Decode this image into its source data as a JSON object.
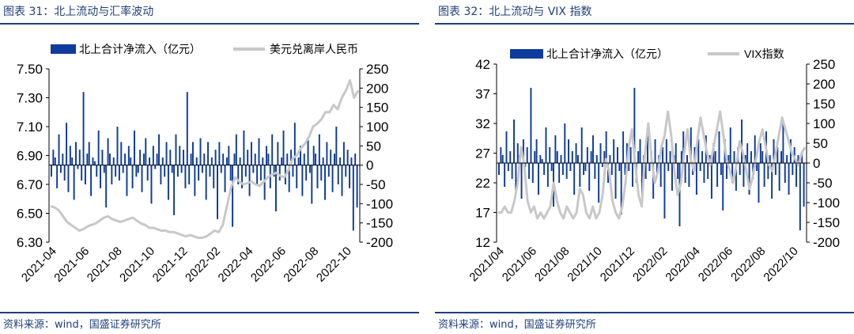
{
  "colors": {
    "accent": "#1f3f7a",
    "flow_bar": "#0f3c9c",
    "index_line": "#c8c8c8"
  },
  "left": {
    "title": "图表 31：北上流动与汇率波动",
    "source": "资料来源：wind，国盛证券研究所",
    "chart_data": {
      "type": "bar",
      "title": "",
      "xlabel": "",
      "x_tick_labels": [
        "2021-04",
        "2021-06",
        "2021-08",
        "2021-10",
        "2021-12",
        "2022-02",
        "2022-04",
        "2022-06",
        "2022-08",
        "2022-10"
      ],
      "left_axis": {
        "ticks": [
          "7.50",
          "7.30",
          "7.10",
          "6.90",
          "6.70",
          "6.50",
          "6.30"
        ],
        "ylim": [
          6.3,
          7.5
        ],
        "series": "美元兑离岸人民币"
      },
      "right_axis": {
        "ticks": [
          "250",
          "200",
          "150",
          "100",
          "50",
          "0",
          "-50",
          "-100",
          "-150",
          "-200"
        ],
        "ylim": [
          -200,
          250
        ],
        "series": "北上合计净流入（亿元）"
      },
      "legend": {
        "placement": "top",
        "items": [
          "北上合计净流入（亿元）",
          "美元兑离岸人民币"
        ]
      },
      "series": [
        {
          "name": "北上合计净流入（亿元）",
          "type": "bar",
          "axis": "right",
          "x_range": [
            "2021-04",
            "2022-10"
          ],
          "values": [
            -30,
            40,
            20,
            -60,
            80,
            -20,
            30,
            -40,
            110,
            -70,
            50,
            20,
            -90,
            60,
            -10,
            40,
            -40,
            190,
            -50,
            30,
            60,
            -80,
            20,
            10,
            -30,
            90,
            -60,
            40,
            -20,
            -110,
            70,
            30,
            -50,
            20,
            -30,
            100,
            -40,
            60,
            -20,
            30,
            -80,
            50,
            20,
            -60,
            90,
            -30,
            -20,
            40,
            -70,
            30,
            70,
            -40,
            20,
            -100,
            50,
            -10,
            30,
            80,
            -50,
            20,
            -30,
            60,
            -90,
            40,
            -20,
            -130,
            80,
            -30,
            50,
            -20,
            40,
            -60,
            190,
            -50,
            30,
            60,
            -80,
            20,
            -40,
            70,
            -20,
            30,
            -90,
            60,
            -30,
            20,
            -60,
            40,
            -140,
            60,
            -20,
            30,
            -70,
            20,
            50,
            -40,
            -160,
            30,
            80,
            -50,
            20,
            -60,
            90,
            -30,
            40,
            -80,
            60,
            -20,
            30,
            -50,
            70,
            -40,
            20,
            -90,
            50,
            30,
            -60,
            80,
            -30,
            -120,
            60,
            -40,
            20,
            90,
            -50,
            30,
            -70,
            40,
            -30,
            110,
            -60,
            20,
            50,
            -80,
            30,
            -40,
            70,
            -20,
            -100,
            50,
            30,
            -60,
            80,
            -40,
            20,
            -90,
            60,
            -30,
            40,
            -70,
            30,
            100,
            -50,
            20,
            -80,
            60,
            -30,
            40,
            -60,
            20,
            -170,
            30,
            -110
          ]
        },
        {
          "name": "美元兑离岸人民币",
          "type": "line",
          "axis": "left",
          "x_range": [
            "2021-04",
            "2022-10"
          ],
          "values": [
            6.55,
            6.54,
            6.52,
            6.48,
            6.44,
            6.42,
            6.4,
            6.38,
            6.39,
            6.41,
            6.42,
            6.43,
            6.45,
            6.47,
            6.48,
            6.46,
            6.45,
            6.44,
            6.45,
            6.46,
            6.47,
            6.45,
            6.43,
            6.42,
            6.4,
            6.4,
            6.39,
            6.38,
            6.38,
            6.37,
            6.37,
            6.36,
            6.35,
            6.34,
            6.35,
            6.34,
            6.33,
            6.33,
            6.34,
            6.36,
            6.38,
            6.37,
            6.42,
            6.55,
            6.68,
            6.75,
            6.72,
            6.7,
            6.71,
            6.72,
            6.7,
            6.69,
            6.72,
            6.75,
            6.77,
            6.78,
            6.76,
            6.75,
            6.8,
            6.88,
            6.9,
            6.95,
            6.98,
            7.03,
            7.1,
            7.12,
            7.15,
            7.2,
            7.2,
            7.25,
            7.22,
            7.3,
            7.35,
            7.42,
            7.3,
            7.35
          ]
        }
      ]
    }
  },
  "right": {
    "title": "图表 32：北上流动与 VIX 指数",
    "source": "资料来源：wind，国盛证券研究所",
    "chart_data": {
      "type": "bar",
      "title": "",
      "xlabel": "",
      "x_tick_labels": [
        "2021/04",
        "2021/06",
        "2021/08",
        "2021/10",
        "2021/12",
        "2022/02",
        "2022/04",
        "2022/06",
        "2022/08",
        "2022/10"
      ],
      "left_axis": {
        "ticks": [
          "42",
          "37",
          "32",
          "27",
          "22",
          "17",
          "12"
        ],
        "ylim": [
          12,
          42
        ],
        "series": "VIX指数"
      },
      "right_axis": {
        "ticks": [
          "250",
          "200",
          "150",
          "100",
          "50",
          "0",
          "-50",
          "-100",
          "-150",
          "-200"
        ],
        "ylim": [
          -200,
          250
        ],
        "series": "北上合计净流入（亿元）"
      },
      "legend": {
        "placement": "top",
        "items": [
          "北上合计净流入（亿元）",
          "VIX指数"
        ]
      },
      "series": [
        {
          "name": "北上合计净流入（亿元）",
          "type": "bar",
          "axis": "right",
          "x_range": [
            "2021/04",
            "2022/10"
          ],
          "values": [
            -30,
            40,
            20,
            -60,
            80,
            -20,
            30,
            -40,
            110,
            -70,
            50,
            20,
            -90,
            60,
            -10,
            40,
            -40,
            190,
            -50,
            30,
            60,
            -80,
            20,
            10,
            -30,
            90,
            -60,
            40,
            -20,
            -110,
            70,
            30,
            -50,
            20,
            -30,
            100,
            -40,
            60,
            -20,
            30,
            -80,
            50,
            20,
            -60,
            90,
            -30,
            -20,
            40,
            -70,
            30,
            70,
            -40,
            20,
            -100,
            50,
            -10,
            30,
            80,
            -50,
            20,
            -30,
            60,
            -90,
            40,
            -20,
            -130,
            80,
            -30,
            50,
            -20,
            40,
            -60,
            190,
            -50,
            30,
            60,
            -80,
            20,
            -40,
            70,
            -20,
            30,
            -90,
            60,
            -30,
            20,
            -60,
            40,
            -140,
            60,
            -20,
            30,
            -70,
            20,
            50,
            -40,
            -160,
            30,
            80,
            -50,
            20,
            -60,
            90,
            -30,
            40,
            -80,
            60,
            -20,
            30,
            -50,
            70,
            -40,
            20,
            -90,
            50,
            30,
            -60,
            80,
            -30,
            -120,
            60,
            -40,
            20,
            90,
            -50,
            30,
            -70,
            40,
            -30,
            110,
            -60,
            20,
            50,
            -80,
            30,
            -40,
            70,
            -20,
            -100,
            50,
            30,
            -60,
            80,
            -40,
            20,
            -90,
            60,
            -30,
            40,
            -70,
            30,
            100,
            -50,
            20,
            -80,
            60,
            -30,
            40,
            -60,
            20,
            -170,
            30,
            -110
          ]
        },
        {
          "name": "VIX指数",
          "type": "line",
          "axis": "left",
          "x_range": [
            "2021/04",
            "2022/10"
          ],
          "values": [
            17,
            17,
            18,
            17,
            17,
            19,
            22,
            28,
            25,
            19,
            17,
            18,
            16,
            17,
            16,
            17,
            18,
            22,
            19,
            17,
            16,
            18,
            17,
            16,
            17,
            21,
            20,
            17,
            16,
            18,
            16,
            17,
            20,
            26,
            24,
            19,
            17,
            16,
            18,
            22,
            28,
            31,
            25,
            20,
            18,
            27,
            32,
            26,
            22,
            24,
            28,
            30,
            34,
            30,
            24,
            20,
            22,
            27,
            31,
            26,
            24,
            29,
            33,
            30,
            27,
            25,
            28,
            31,
            34,
            30,
            26,
            24,
            22,
            25,
            29,
            27,
            24,
            21,
            23,
            26,
            29,
            31,
            28,
            25,
            24,
            27,
            30,
            33,
            31,
            29,
            27,
            26,
            25,
            27,
            28
          ]
        }
      ]
    }
  }
}
